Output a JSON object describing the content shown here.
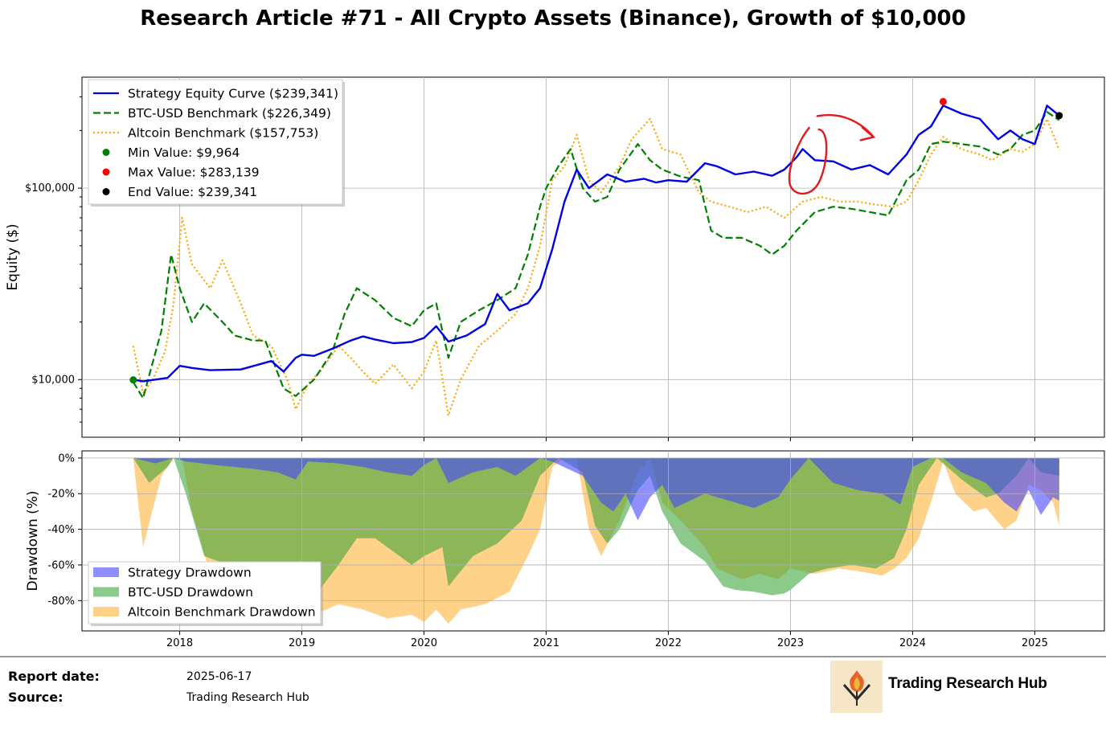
{
  "title": "Research Article #71 - All Crypto Assets (Binance), Growth of $10,000",
  "colors": {
    "strategy": "#0000e6",
    "btc": "#008000",
    "altcoin": "#ffa500",
    "min_marker": "#008000",
    "max_marker": "#ff0000",
    "end_marker": "#000000",
    "annotation": "#e01b1b"
  },
  "chart_data": [
    {
      "type": "line",
      "title": "Research Article #71 - All Crypto Assets (Binance), Growth of $10,000",
      "xlabel": "",
      "ylabel": "Equity ($)",
      "yscale": "log",
      "ylim": [
        5000,
        380000
      ],
      "xlim": [
        2017.2,
        2025.57
      ],
      "yticks": [
        10000,
        100000
      ],
      "ytick_labels": [
        "$10,000",
        "$100,000"
      ],
      "xticks": [
        2018,
        2019,
        2020,
        2021,
        2022,
        2023,
        2024,
        2025
      ],
      "legend": [
        "Strategy Equity Curve ($239,341)",
        "BTC-USD Benchmark ($226,349)",
        "Altcoin Benchmark ($157,753)",
        "Min Value: $9,964",
        "Max Value: $283,139",
        "End Value: $239,341"
      ],
      "legend_position": "top-left",
      "grid": true,
      "series": [
        {
          "name": "Strategy Equity Curve ($239,341)",
          "style": "solid",
          "x": [
            2017.62,
            2017.7,
            2017.8,
            2017.9,
            2018.0,
            2018.1,
            2018.25,
            2018.5,
            2018.75,
            2018.85,
            2018.95,
            2019.0,
            2019.1,
            2019.25,
            2019.4,
            2019.5,
            2019.6,
            2019.75,
            2019.9,
            2020.0,
            2020.1,
            2020.2,
            2020.35,
            2020.5,
            2020.6,
            2020.7,
            2020.85,
            2020.95,
            2021.05,
            2021.15,
            2021.25,
            2021.35,
            2021.5,
            2021.65,
            2021.8,
            2021.9,
            2022.0,
            2022.15,
            2022.3,
            2022.4,
            2022.55,
            2022.7,
            2022.85,
            2022.95,
            2023.05,
            2023.1,
            2023.2,
            2023.35,
            2023.5,
            2023.65,
            2023.8,
            2023.95,
            2024.05,
            2024.15,
            2024.25,
            2024.4,
            2024.55,
            2024.7,
            2024.8,
            2024.9,
            2025.0,
            2025.1,
            2025.2
          ],
          "values": [
            10000,
            9800,
            10000,
            10200,
            11800,
            11500,
            11200,
            11300,
            12500,
            11000,
            13000,
            13500,
            13300,
            14500,
            16000,
            16800,
            16200,
            15500,
            15700,
            16500,
            19000,
            15800,
            17000,
            19500,
            28000,
            23000,
            25000,
            30000,
            48000,
            85000,
            125000,
            100000,
            118000,
            108000,
            112000,
            107000,
            110000,
            108000,
            135000,
            130000,
            118000,
            122000,
            116000,
            125000,
            145000,
            160000,
            140000,
            138000,
            125000,
            132000,
            118000,
            150000,
            190000,
            210000,
            270000,
            245000,
            230000,
            180000,
            200000,
            180000,
            170000,
            270000,
            239341
          ]
        },
        {
          "name": "BTC-USD Benchmark ($226,349)",
          "style": "dashed",
          "x": [
            2017.62,
            2017.7,
            2017.75,
            2017.85,
            2017.93,
            2018.0,
            2018.1,
            2018.2,
            2018.35,
            2018.45,
            2018.6,
            2018.7,
            2018.85,
            2018.95,
            2019.1,
            2019.25,
            2019.35,
            2019.45,
            2019.6,
            2019.75,
            2019.9,
            2020.0,
            2020.1,
            2020.2,
            2020.3,
            2020.45,
            2020.6,
            2020.75,
            2020.85,
            2020.95,
            2021.0,
            2021.1,
            2021.2,
            2021.3,
            2021.4,
            2021.5,
            2021.6,
            2021.75,
            2021.85,
            2021.95,
            2022.1,
            2022.25,
            2022.35,
            2022.45,
            2022.6,
            2022.75,
            2022.85,
            2022.95,
            2023.05,
            2023.2,
            2023.35,
            2023.5,
            2023.65,
            2023.8,
            2023.95,
            2024.05,
            2024.15,
            2024.25,
            2024.4,
            2024.55,
            2024.7,
            2024.8,
            2024.9,
            2025.0,
            2025.1,
            2025.2
          ],
          "values": [
            9700,
            8000,
            10500,
            18000,
            45000,
            30000,
            20000,
            25000,
            20000,
            17000,
            16000,
            16000,
            9000,
            8200,
            10000,
            14000,
            22000,
            30000,
            26000,
            21000,
            19000,
            23000,
            25000,
            13000,
            20000,
            23000,
            26000,
            30000,
            45000,
            80000,
            100000,
            130000,
            160000,
            100000,
            85000,
            90000,
            125000,
            170000,
            140000,
            125000,
            115000,
            110000,
            60000,
            55000,
            55000,
            50000,
            45000,
            50000,
            60000,
            75000,
            80000,
            78000,
            75000,
            72000,
            110000,
            125000,
            170000,
            175000,
            170000,
            165000,
            150000,
            160000,
            190000,
            200000,
            250000,
            226349
          ]
        },
        {
          "name": "Altcoin Benchmark ($157,753)",
          "style": "dotted",
          "x": [
            2017.62,
            2017.7,
            2017.78,
            2017.88,
            2017.95,
            2018.02,
            2018.1,
            2018.25,
            2018.35,
            2018.5,
            2018.6,
            2018.75,
            2018.88,
            2018.95,
            2019.05,
            2019.15,
            2019.3,
            2019.4,
            2019.5,
            2019.6,
            2019.75,
            2019.9,
            2020.0,
            2020.1,
            2020.2,
            2020.3,
            2020.45,
            2020.6,
            2020.75,
            2020.85,
            2020.95,
            2021.05,
            2021.15,
            2021.25,
            2021.35,
            2021.45,
            2021.6,
            2021.7,
            2021.85,
            2021.95,
            2022.1,
            2022.25,
            2022.35,
            2022.5,
            2022.65,
            2022.8,
            2022.95,
            2023.1,
            2023.25,
            2023.4,
            2023.55,
            2023.7,
            2023.85,
            2023.95,
            2024.05,
            2024.15,
            2024.25,
            2024.4,
            2024.55,
            2024.65,
            2024.8,
            2024.9,
            2025.0,
            2025.1,
            2025.2
          ],
          "values": [
            15000,
            8500,
            10000,
            14000,
            25000,
            70000,
            40000,
            30000,
            42000,
            25000,
            17000,
            15000,
            10000,
            7000,
            9500,
            11000,
            15000,
            13000,
            11000,
            9500,
            12000,
            9000,
            11000,
            16000,
            6500,
            10000,
            15000,
            18000,
            22000,
            30000,
            50000,
            110000,
            130000,
            190000,
            110000,
            95000,
            130000,
            180000,
            230000,
            160000,
            150000,
            95000,
            85000,
            80000,
            75000,
            80000,
            70000,
            85000,
            90000,
            85000,
            85000,
            82000,
            80000,
            85000,
            110000,
            150000,
            185000,
            160000,
            150000,
            140000,
            160000,
            155000,
            170000,
            230000,
            157753
          ]
        }
      ],
      "markers": [
        {
          "name": "Min Value: $9,964",
          "x": 2017.62,
          "value": 9964
        },
        {
          "name": "Max Value: $283,139",
          "x": 2024.25,
          "value": 283139
        },
        {
          "name": "End Value: $239,341",
          "x": 2025.2,
          "value": 239341
        }
      ],
      "annotations": [
        {
          "type": "hand-drawn-circle",
          "x": 2023.1,
          "value": 135000
        },
        {
          "type": "hand-drawn-arrow",
          "x_from": 2023.22,
          "x_to": 2023.68,
          "value": 185000
        }
      ]
    },
    {
      "type": "area",
      "xlabel": "",
      "ylabel": "Drawdown (%)",
      "ylim": [
        -97,
        4
      ],
      "xlim": [
        2017.2,
        2025.57
      ],
      "yticks": [
        0,
        -20,
        -40,
        -60,
        -80
      ],
      "ytick_labels": [
        "0%",
        "-20%",
        "-40%",
        "-60%",
        "-80%"
      ],
      "xticks": [
        2018,
        2019,
        2020,
        2021,
        2022,
        2023,
        2024,
        2025
      ],
      "xtick_labels": [
        "2018",
        "2019",
        "2020",
        "2021",
        "2022",
        "2023",
        "2024",
        "2025"
      ],
      "legend": [
        "Strategy Drawdown",
        "BTC-USD Drawdown",
        "Altcoin Benchmark Drawdown"
      ],
      "legend_position": "lower-left",
      "grid": true,
      "series": [
        {
          "name": "Strategy Drawdown",
          "x": [
            2017.62,
            2017.8,
            2017.95,
            2018.05,
            2018.3,
            2018.6,
            2018.8,
            2018.95,
            2019.05,
            2019.3,
            2019.5,
            2019.7,
            2019.9,
            2020.0,
            2020.1,
            2020.2,
            2020.4,
            2020.6,
            2020.75,
            2020.95,
            2021.05,
            2021.3,
            2021.45,
            2021.55,
            2021.65,
            2021.75,
            2021.85,
            2021.95,
            2022.05,
            2022.3,
            2022.5,
            2022.7,
            2022.9,
            2023.0,
            2023.15,
            2023.35,
            2023.55,
            2023.75,
            2023.9,
            2024.0,
            2024.15,
            2024.25,
            2024.4,
            2024.6,
            2024.75,
            2024.85,
            2024.95,
            2025.05,
            2025.15,
            2025.2
          ],
          "values": [
            0,
            -3,
            0,
            -2,
            -4,
            -6,
            -8,
            -12,
            -2,
            -3,
            -5,
            -8,
            -10,
            -4,
            0,
            -14,
            -8,
            -5,
            -10,
            0,
            -2,
            -10,
            -25,
            -30,
            -20,
            -35,
            -22,
            -15,
            -28,
            -20,
            -24,
            -28,
            -22,
            -12,
            0,
            -14,
            -18,
            -20,
            -26,
            -5,
            0,
            0,
            -8,
            -14,
            -25,
            -30,
            -18,
            -32,
            -22,
            -24
          ]
        },
        {
          "name": "BTC-USD Drawdown",
          "x": [
            2017.62,
            2017.75,
            2017.9,
            2017.95,
            2018.05,
            2018.2,
            2018.4,
            2018.6,
            2018.75,
            2018.9,
            2018.95,
            2019.1,
            2019.3,
            2019.45,
            2019.6,
            2019.8,
            2019.9,
            2020.0,
            2020.15,
            2020.2,
            2020.4,
            2020.6,
            2020.8,
            2020.95,
            2021.1,
            2021.3,
            2021.4,
            2021.5,
            2021.6,
            2021.75,
            2021.85,
            2021.95,
            2022.1,
            2022.3,
            2022.45,
            2022.55,
            2022.7,
            2022.85,
            2022.95,
            2023.0,
            2023.15,
            2023.3,
            2023.5,
            2023.7,
            2023.85,
            2023.95,
            2024.05,
            2024.2,
            2024.4,
            2024.6,
            2024.7,
            2024.85,
            2024.95,
            2025.05,
            2025.2
          ],
          "values": [
            0,
            -14,
            -5,
            0,
            -20,
            -55,
            -60,
            -63,
            -70,
            -80,
            -84,
            -78,
            -60,
            -45,
            -45,
            -55,
            -60,
            -55,
            -50,
            -72,
            -55,
            -48,
            -35,
            -10,
            0,
            -8,
            -38,
            -48,
            -40,
            -18,
            -10,
            -30,
            -48,
            -58,
            -72,
            -74,
            -75,
            -77,
            -76,
            -74,
            -65,
            -62,
            -60,
            -62,
            -56,
            -40,
            -15,
            0,
            -12,
            -22,
            -20,
            -10,
            0,
            -8,
            -10
          ]
        },
        {
          "name": "Altcoin Benchmark Drawdown",
          "x": [
            2017.62,
            2017.7,
            2017.85,
            2017.95,
            2018.02,
            2018.1,
            2018.25,
            2018.4,
            2018.6,
            2018.75,
            2018.9,
            2018.95,
            2019.1,
            2019.3,
            2019.5,
            2019.7,
            2019.9,
            2020.0,
            2020.1,
            2020.2,
            2020.3,
            2020.5,
            2020.7,
            2020.85,
            2020.95,
            2021.05,
            2021.15,
            2021.25,
            2021.35,
            2021.45,
            2021.6,
            2021.75,
            2021.85,
            2021.95,
            2022.1,
            2022.3,
            2022.4,
            2022.5,
            2022.6,
            2022.75,
            2022.9,
            2023.0,
            2023.2,
            2023.4,
            2023.6,
            2023.75,
            2023.85,
            2023.95,
            2024.05,
            2024.15,
            2024.25,
            2024.35,
            2024.5,
            2024.6,
            2024.75,
            2024.85,
            2024.95,
            2025.05,
            2025.15,
            2025.2
          ],
          "values": [
            0,
            -50,
            -10,
            0,
            0,
            -30,
            -65,
            -75,
            -82,
            -85,
            -88,
            -90,
            -88,
            -82,
            -85,
            -90,
            -88,
            -92,
            -85,
            -93,
            -85,
            -82,
            -75,
            -55,
            -40,
            -5,
            0,
            0,
            -40,
            -55,
            -35,
            -8,
            0,
            -25,
            -35,
            -50,
            -62,
            -65,
            -68,
            -65,
            -68,
            -62,
            -65,
            -62,
            -64,
            -66,
            -62,
            -56,
            -45,
            -25,
            -2,
            -20,
            -30,
            -28,
            -40,
            -35,
            -15,
            -18,
            -25,
            -38
          ]
        }
      ]
    }
  ],
  "footer": {
    "report_label": "Report date:",
    "report_value": "2025-06-17",
    "source_label": "Source:",
    "source_value": "Trading Research Hub",
    "brand": "Trading Research Hub"
  }
}
